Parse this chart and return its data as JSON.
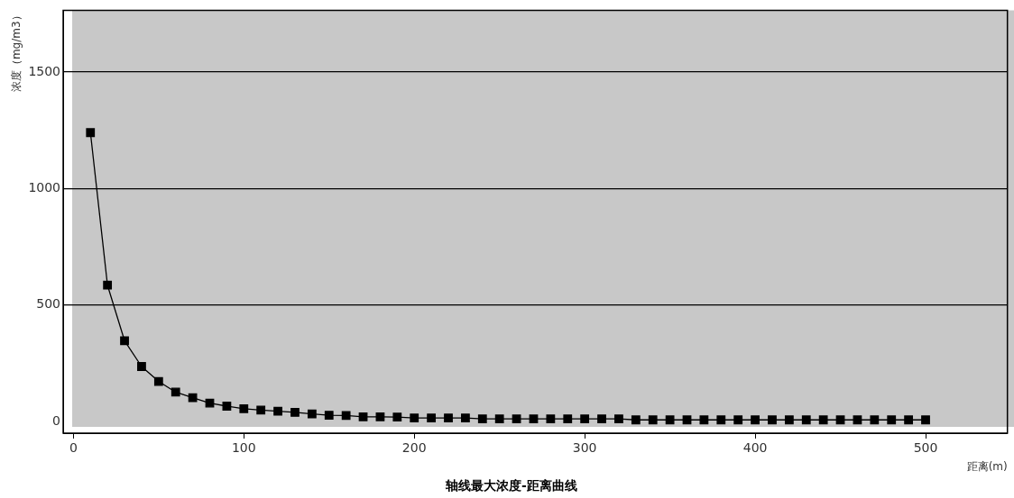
{
  "chart_data": {
    "type": "line",
    "title": "轴线最大浓度-距离曲线",
    "xlabel": "距离(m)",
    "ylabel": "浓度（mg/m3）",
    "x": [
      10,
      20,
      30,
      40,
      50,
      60,
      70,
      80,
      90,
      100,
      110,
      120,
      130,
      140,
      150,
      160,
      170,
      180,
      190,
      200,
      210,
      220,
      230,
      240,
      250,
      260,
      270,
      280,
      290,
      300,
      310,
      320,
      330,
      340,
      350,
      360,
      370,
      380,
      390,
      400,
      410,
      420,
      430,
      440,
      450,
      460,
      470,
      480,
      490,
      500
    ],
    "series": [
      {
        "color": "#000000",
        "values": [
          1240,
          585,
          347,
          236,
          172,
          126,
          102,
          79,
          66,
          55,
          49,
          44,
          39,
          33,
          27,
          26,
          20,
          20,
          19,
          15,
          15,
          15,
          15,
          11,
          11,
          11,
          11,
          11,
          11,
          11,
          11,
          11,
          7,
          7,
          7,
          7,
          7,
          7,
          7,
          7,
          7,
          7,
          7,
          7,
          7,
          7,
          7,
          7,
          7,
          7
        ]
      }
    ],
    "xlim": [
      -6,
      548
    ],
    "xticks": [
      0,
      100,
      200,
      300,
      400,
      500
    ],
    "ylim": [
      -50,
      1765
    ],
    "yticks": [
      0,
      500,
      1000,
      1500
    ],
    "grid": "y",
    "legend": false,
    "marker": "square",
    "line_style": "solid"
  }
}
